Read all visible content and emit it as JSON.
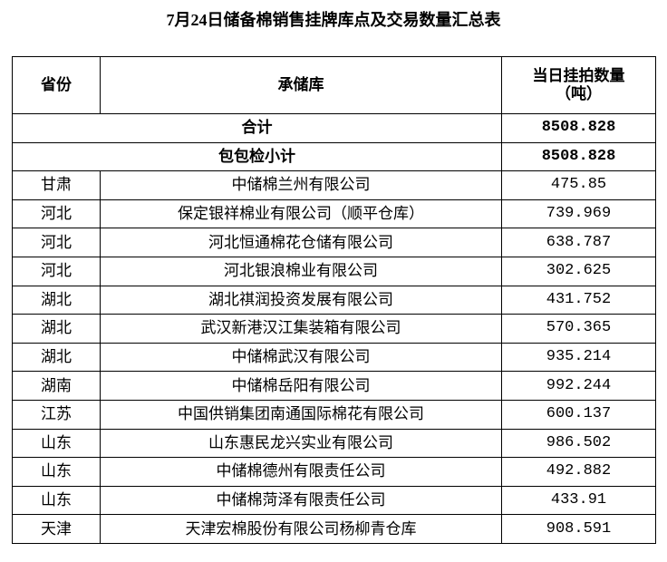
{
  "title": "7月24日储备棉销售挂牌库点及交易数量汇总表",
  "headers": {
    "province": "省份",
    "warehouse": "承储库",
    "quantity_line1": "当日挂拍数量",
    "quantity_line2": "（吨）"
  },
  "total": {
    "label": "合计",
    "value": "8508.828"
  },
  "subtotal": {
    "label": "包包检小计",
    "value": "8508.828"
  },
  "rows": [
    {
      "province": "甘肃",
      "warehouse": "中储棉兰州有限公司",
      "quantity": "475.85"
    },
    {
      "province": "河北",
      "warehouse": "保定银祥棉业有限公司（顺平仓库）",
      "quantity": "739.969"
    },
    {
      "province": "河北",
      "warehouse": "河北恒通棉花仓储有限公司",
      "quantity": "638.787"
    },
    {
      "province": "河北",
      "warehouse": "河北银浪棉业有限公司",
      "quantity": "302.625"
    },
    {
      "province": "湖北",
      "warehouse": "湖北祺润投资发展有限公司",
      "quantity": "431.752"
    },
    {
      "province": "湖北",
      "warehouse": "武汉新港汉江集装箱有限公司",
      "quantity": "570.365"
    },
    {
      "province": "湖北",
      "warehouse": "中储棉武汉有限公司",
      "quantity": "935.214"
    },
    {
      "province": "湖南",
      "warehouse": "中储棉岳阳有限公司",
      "quantity": "992.244"
    },
    {
      "province": "江苏",
      "warehouse": "中国供销集团南通国际棉花有限公司",
      "quantity": "600.137"
    },
    {
      "province": "山东",
      "warehouse": "山东惠民龙兴实业有限公司",
      "quantity": "986.502"
    },
    {
      "province": "山东",
      "warehouse": "中储棉德州有限责任公司",
      "quantity": "492.882"
    },
    {
      "province": "山东",
      "warehouse": "中储棉菏泽有限责任公司",
      "quantity": "433.91"
    },
    {
      "province": "天津",
      "warehouse": "天津宏棉股份有限公司杨柳青仓库",
      "quantity": "908.591"
    }
  ]
}
